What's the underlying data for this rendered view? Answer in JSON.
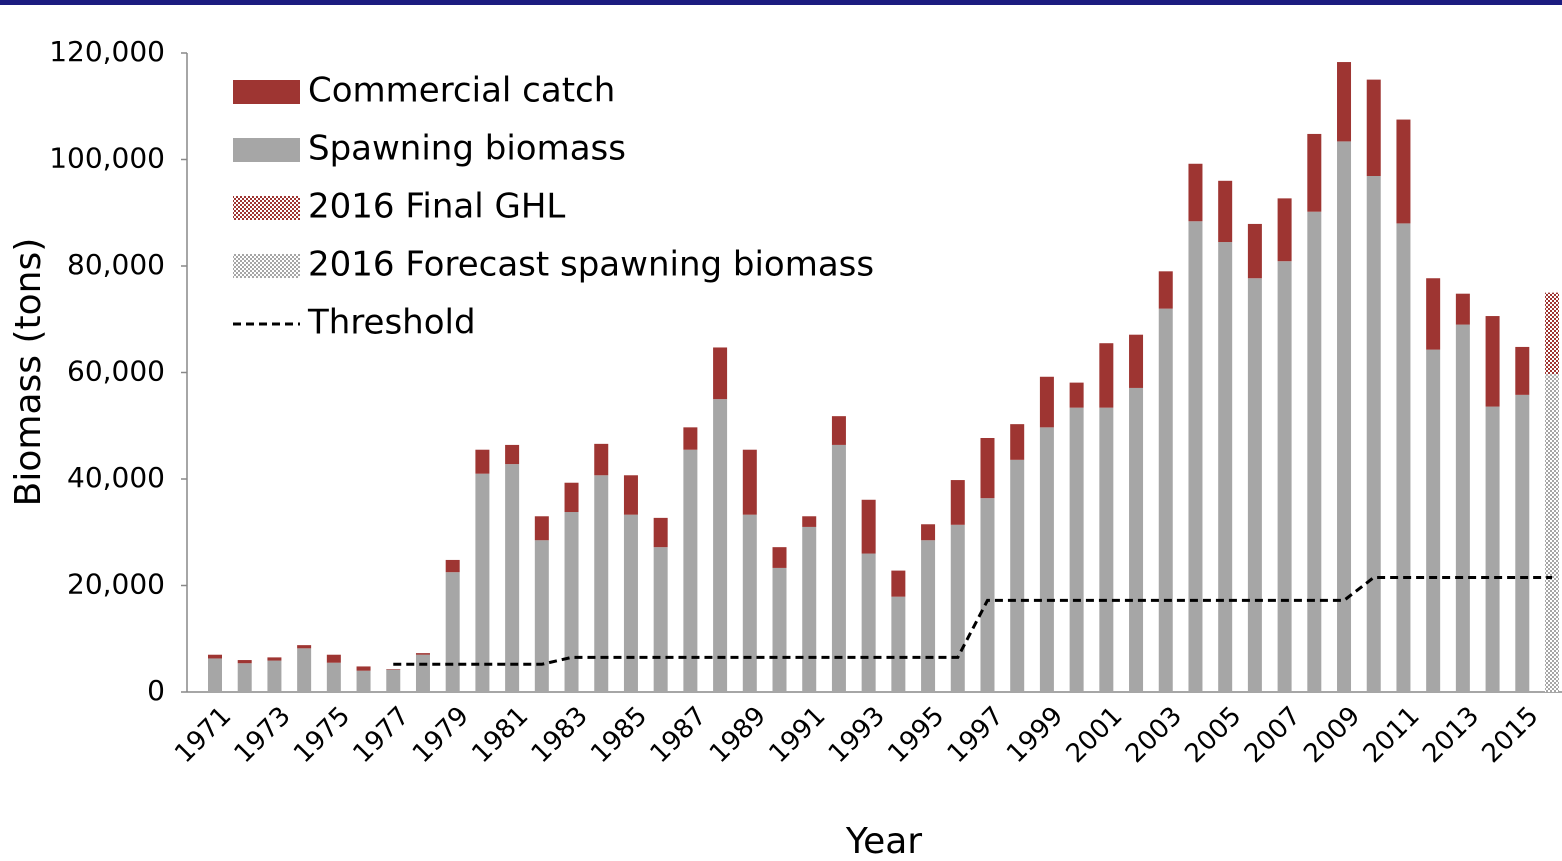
{
  "chart_data": {
    "type": "bar",
    "stacked": true,
    "ylabel": "Biomass (tons)",
    "xlabel": "Year",
    "categories": [
      "1971",
      null,
      "1973",
      null,
      "1975",
      null,
      "1977",
      null,
      "1979",
      null,
      "1981",
      null,
      "1983",
      null,
      "1985",
      null,
      "1987",
      null,
      "1989",
      null,
      "1991",
      null,
      "1993",
      null,
      "1995",
      null,
      "1997",
      null,
      "1999",
      null,
      "2001",
      null,
      "2003",
      null,
      "2005",
      null,
      "2007",
      null,
      "2009",
      null,
      "2011",
      null,
      "2013",
      null,
      "2015",
      null
    ],
    "series": [
      {
        "name": "Commercial catch",
        "color": "#9e3532",
        "values": [
          700,
          600,
          600,
          600,
          1500,
          800,
          100,
          300,
          2300,
          4500,
          3600,
          4500,
          5500,
          5900,
          7400,
          5500,
          4200,
          9700,
          12200,
          3900,
          2000,
          5400,
          10100,
          4900,
          3000,
          8400,
          11300,
          6700,
          9500,
          4700,
          12100,
          10000,
          7000,
          10800,
          11500,
          10200,
          11800,
          14600,
          14900,
          18100,
          19500,
          13400,
          5800,
          17000,
          9000,
          null
        ]
      },
      {
        "name": "Spawning biomass",
        "color": "#a6a6a6",
        "values": [
          6300,
          5400,
          5900,
          8200,
          5500,
          4000,
          4200,
          7000,
          22500,
          41000,
          42800,
          28500,
          33800,
          40700,
          33300,
          27200,
          45500,
          55000,
          33300,
          23300,
          31000,
          46400,
          26000,
          17900,
          28500,
          31400,
          36400,
          43600,
          49700,
          53400,
          53400,
          57100,
          72000,
          88400,
          84500,
          77700,
          80900,
          90200,
          103400,
          96900,
          88000,
          64300,
          69000,
          53600,
          55800,
          null
        ]
      },
      {
        "name": "2016 Final GHL",
        "color": "#9e3532",
        "hatch": true,
        "values": [
          null,
          null,
          null,
          null,
          null,
          null,
          null,
          null,
          null,
          null,
          null,
          null,
          null,
          null,
          null,
          null,
          null,
          null,
          null,
          null,
          null,
          null,
          null,
          null,
          null,
          null,
          null,
          null,
          null,
          null,
          null,
          null,
          null,
          null,
          null,
          null,
          null,
          null,
          null,
          null,
          null,
          null,
          null,
          null,
          null,
          15300
        ]
      },
      {
        "name": "2016 Forecast spawning biomass",
        "color": "#a6a6a6",
        "hatch": true,
        "values": [
          null,
          null,
          null,
          null,
          null,
          null,
          null,
          null,
          null,
          null,
          null,
          null,
          null,
          null,
          null,
          null,
          null,
          null,
          null,
          null,
          null,
          null,
          null,
          null,
          null,
          null,
          null,
          null,
          null,
          null,
          null,
          null,
          null,
          null,
          null,
          null,
          null,
          null,
          null,
          null,
          null,
          null,
          null,
          null,
          null,
          59700
        ]
      },
      {
        "name": "Threshold",
        "color": "#000000",
        "type": "line",
        "dashed": true,
        "values": [
          null,
          null,
          null,
          null,
          null,
          null,
          5200,
          5200,
          5200,
          5200,
          5200,
          5200,
          6500,
          6500,
          6500,
          6500,
          6500,
          6500,
          6500,
          6500,
          6500,
          6500,
          6500,
          6500,
          6500,
          6500,
          17200,
          17200,
          17200,
          17200,
          17200,
          17200,
          17200,
          17200,
          17200,
          17200,
          17200,
          17200,
          17200,
          21500,
          21500,
          21500,
          21500,
          21500,
          21500,
          21500
        ]
      }
    ],
    "ylim": [
      0,
      120000
    ],
    "yticks": [
      0,
      {
        "value": 20000,
        "label": "20,000"
      },
      {
        "value": 40000,
        "label": "40,000"
      },
      {
        "value": 60000,
        "label": "60,000"
      },
      {
        "value": 80000,
        "label": "80,000"
      },
      {
        "value": 100000,
        "label": "100,000"
      },
      {
        "value": 120000,
        "label": "120,000"
      }
    ],
    "legend": "top-left"
  }
}
